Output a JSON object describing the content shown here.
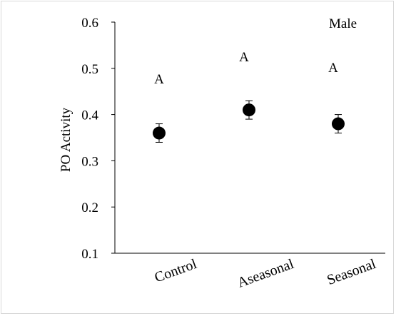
{
  "chart_data": {
    "type": "scatter",
    "title": "",
    "panel_label": "Male",
    "xlabel": "",
    "ylabel": "PO Activity",
    "categories": [
      "Control",
      "Aseasonal",
      "Seasonal"
    ],
    "ylim": [
      0.1,
      0.6
    ],
    "yticks": [
      0.1,
      0.2,
      0.3,
      0.4,
      0.5,
      0.6
    ],
    "ytick_labels": [
      "0.1",
      "0.2",
      "0.3",
      "0.4",
      "0.5",
      "0.6"
    ],
    "series": [
      {
        "values": [
          0.36,
          0.41,
          0.38
        ],
        "errors": [
          0.02,
          0.02,
          0.02
        ]
      }
    ],
    "significance_letters": [
      "A",
      "A",
      "A"
    ],
    "grid": false,
    "marker_color": "#000000"
  }
}
